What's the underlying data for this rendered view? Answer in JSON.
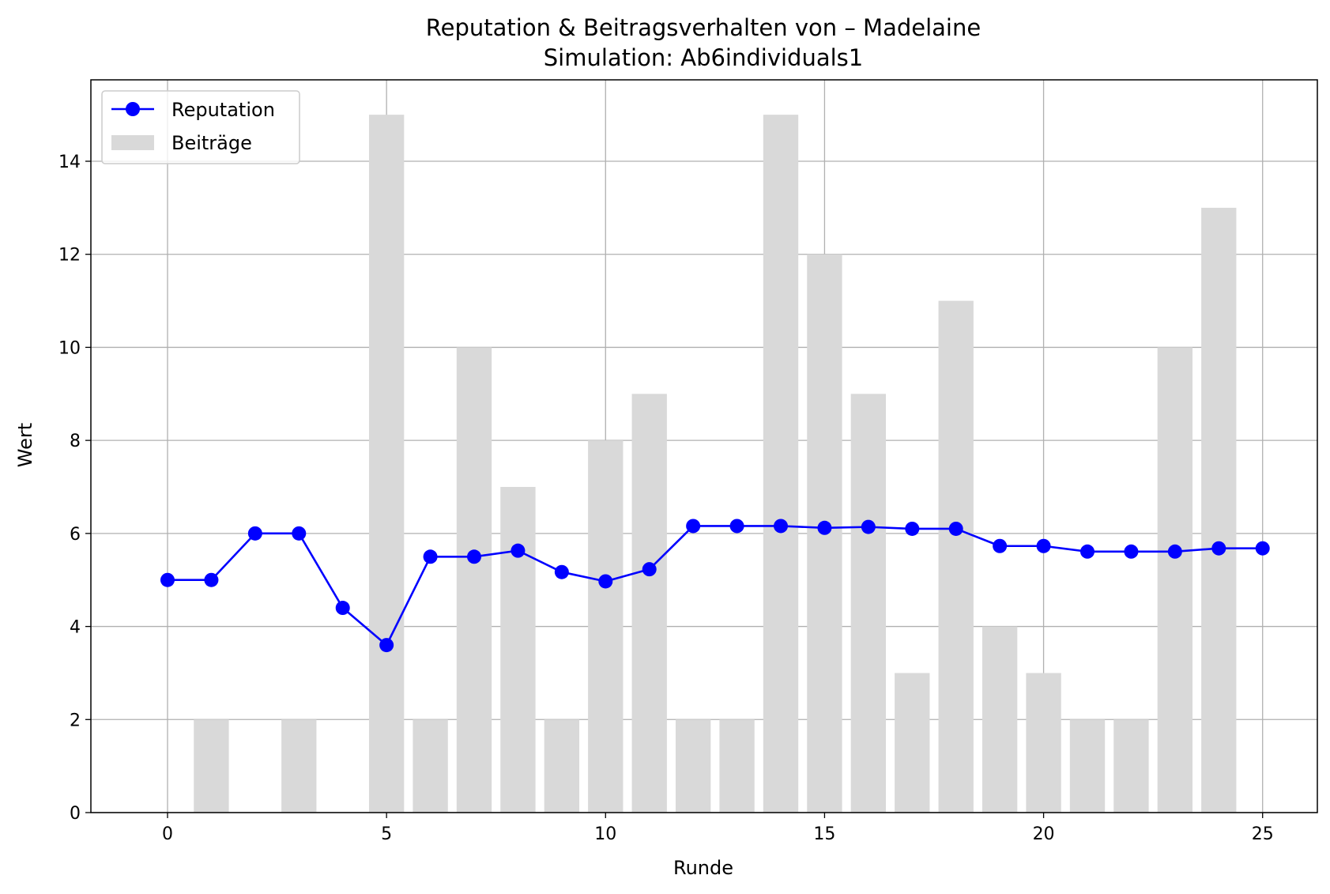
{
  "chart_data": {
    "type": "bar+line",
    "title": "Reputation & Beitragsverhalten von – Madelaine",
    "subtitle": "Simulation: Ab6individuals1",
    "xlabel": "Runde",
    "ylabel": "Wert",
    "xlim": [
      -1.75,
      26.25
    ],
    "ylim": [
      0,
      15.75
    ],
    "xticks": [
      "0",
      "5",
      "10",
      "15",
      "20",
      "25"
    ],
    "yticks": [
      "0",
      "2",
      "4",
      "6",
      "8",
      "10",
      "12",
      "14"
    ],
    "grid": true,
    "legend_position": "top-left",
    "x": [
      0,
      1,
      2,
      3,
      4,
      5,
      6,
      7,
      8,
      9,
      10,
      11,
      12,
      13,
      14,
      15,
      16,
      17,
      18,
      19,
      20,
      21,
      22,
      23,
      24,
      25
    ],
    "series": [
      {
        "name": "Reputation",
        "kind": "line",
        "color": "#0000ff",
        "marker": "circle",
        "values": [
          5.0,
          5.0,
          6.0,
          6.0,
          4.4,
          3.6,
          5.5,
          5.5,
          5.63,
          5.17,
          4.97,
          5.23,
          6.16,
          6.16,
          6.16,
          6.12,
          6.14,
          6.1,
          6.1,
          5.73,
          5.73,
          5.61,
          5.61,
          5.61,
          5.68,
          5.68
        ]
      },
      {
        "name": "Beiträge",
        "kind": "bar",
        "color": "#d9d9d9",
        "values": [
          0,
          2,
          0,
          2,
          0,
          15,
          2,
          10,
          7,
          2,
          8,
          9,
          2,
          2,
          15,
          12,
          9,
          3,
          11,
          4,
          3,
          2,
          2,
          10,
          13,
          0
        ]
      }
    ]
  }
}
